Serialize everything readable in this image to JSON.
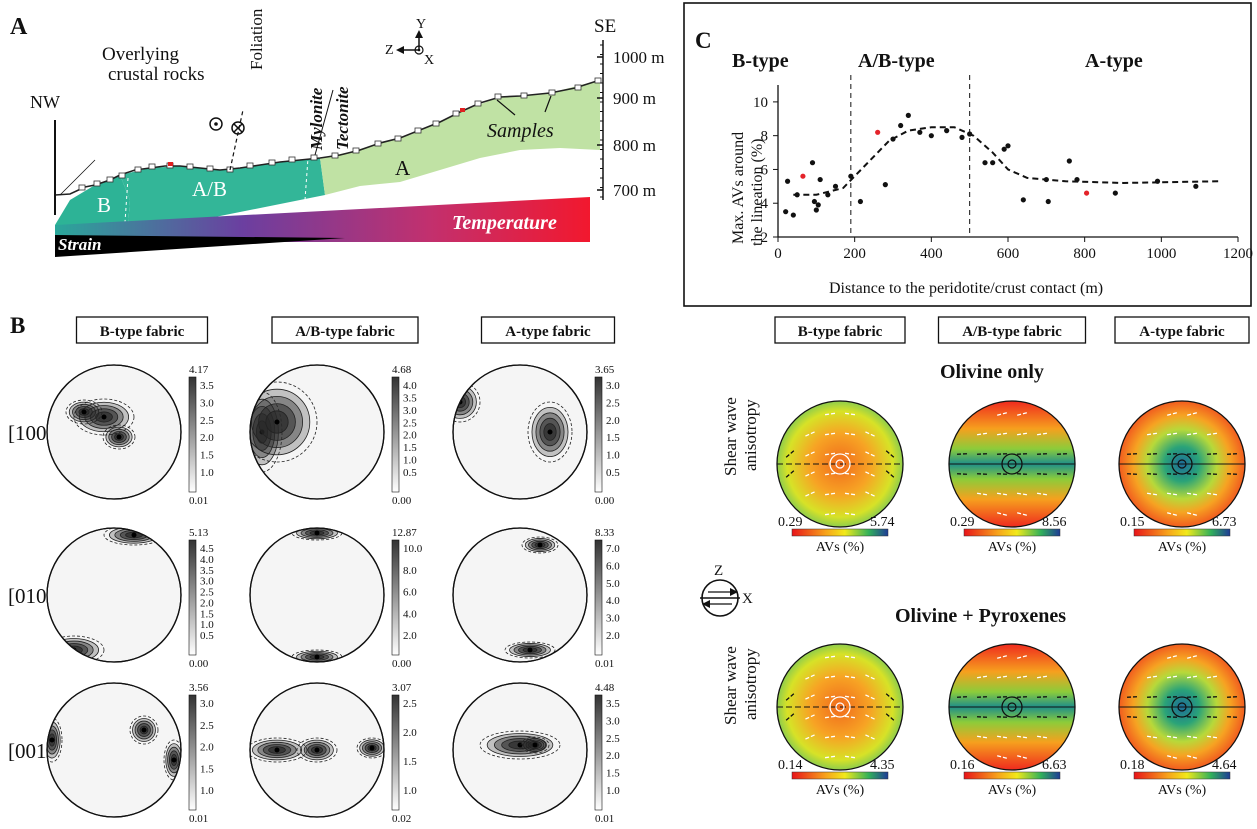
{
  "panel_a": {
    "letter": "A",
    "nw": "NW",
    "se": "SE",
    "overlying": [
      "Overlying",
      "crustal rocks"
    ],
    "foliation": "Foliation",
    "mylonite": "Mylonite",
    "tectonite": "Tectonite",
    "samples": "Samples",
    "zone_b": "B",
    "zone_ab": "A/B",
    "zone_a": "A",
    "strain": "Strain",
    "temperature": "Temperature",
    "axis_y": "Y",
    "axis_z": "Z",
    "axis_x": "X",
    "elev_labels": [
      "1000 m",
      "900 m",
      "800 m",
      "700 m"
    ],
    "colors": {
      "b_zone": "#2fae8f",
      "ab_zone": "#3cb79a",
      "a_zone": "#b9df9c",
      "temp_end": "#f2182e"
    }
  },
  "panel_b": {
    "letter": "B",
    "headers": [
      "B-type fabric",
      "A/B-type fabric",
      "A-type fabric"
    ],
    "rows": [
      "[100]",
      "[010]",
      "[001]"
    ],
    "scales": [
      [
        {
          "max": "4.17",
          "ticks": [
            "3.5",
            "3.0",
            "2.5",
            "2.0",
            "1.5",
            "1.0"
          ],
          "min": "0.01"
        },
        {
          "max": "4.68",
          "ticks": [
            "4.0",
            "3.5",
            "3.0",
            "2.5",
            "2.0",
            "1.5",
            "1.0",
            "0.5"
          ],
          "min": "0.00"
        },
        {
          "max": "3.65",
          "ticks": [
            "3.0",
            "2.5",
            "2.0",
            "1.5",
            "1.0",
            "0.5"
          ],
          "min": "0.00"
        }
      ],
      [
        {
          "max": "5.13",
          "ticks": [
            "4.5",
            "4.0",
            "3.5",
            "3.0",
            "2.5",
            "2.0",
            "1.5",
            "1.0",
            "0.5"
          ],
          "min": "0.00"
        },
        {
          "max": "12.87",
          "ticks": [
            "10.0",
            "8.0",
            "6.0",
            "4.0",
            "2.0"
          ],
          "min": "0.00"
        },
        {
          "max": "8.33",
          "ticks": [
            "7.0",
            "6.0",
            "5.0",
            "4.0",
            "3.0",
            "2.0"
          ],
          "min": "0.01"
        }
      ],
      [
        {
          "max": "3.56",
          "ticks": [
            "3.0",
            "2.5",
            "2.0",
            "1.5",
            "1.0"
          ],
          "min": "0.01"
        },
        {
          "max": "3.07",
          "ticks": [
            "2.5",
            "2.0",
            "1.5",
            "1.0"
          ],
          "min": "0.02"
        },
        {
          "max": "4.48",
          "ticks": [
            "3.5",
            "3.0",
            "2.5",
            "2.0",
            "1.5",
            "1.0"
          ],
          "min": "0.01"
        }
      ]
    ]
  },
  "panel_c": {
    "letter": "C",
    "zones": [
      "B-type",
      "A/B-type",
      "A-type"
    ],
    "chart_data": {
      "type": "scatter",
      "xlabel": "Distance to the peridotite/crust contact (m)",
      "ylabel": [
        "Max. AVs around",
        "the lineation (%)"
      ],
      "xlim": [
        0,
        1200
      ],
      "ylim": [
        2,
        11
      ],
      "xticks": [
        0,
        200,
        400,
        600,
        800,
        1000,
        1200
      ],
      "yticks": [
        2,
        4,
        6,
        8,
        10
      ],
      "boundaries": [
        190,
        500
      ],
      "points_black": [
        [
          20,
          3.5
        ],
        [
          25,
          5.3
        ],
        [
          40,
          3.3
        ],
        [
          50,
          4.5
        ],
        [
          90,
          6.4
        ],
        [
          95,
          4.1
        ],
        [
          100,
          3.6
        ],
        [
          105,
          3.9
        ],
        [
          110,
          5.4
        ],
        [
          130,
          4.5
        ],
        [
          150,
          5.0
        ],
        [
          190,
          5.6
        ],
        [
          215,
          4.1
        ],
        [
          280,
          5.1
        ],
        [
          300,
          7.8
        ],
        [
          320,
          8.6
        ],
        [
          340,
          9.2
        ],
        [
          370,
          8.2
        ],
        [
          400,
          8.0
        ],
        [
          440,
          8.3
        ],
        [
          480,
          7.9
        ],
        [
          500,
          8.1
        ],
        [
          540,
          6.4
        ],
        [
          560,
          6.4
        ],
        [
          590,
          7.2
        ],
        [
          600,
          7.4
        ],
        [
          640,
          4.2
        ],
        [
          700,
          5.4
        ],
        [
          705,
          4.1
        ],
        [
          760,
          6.5
        ],
        [
          780,
          5.4
        ],
        [
          880,
          4.6
        ],
        [
          990,
          5.3
        ],
        [
          1090,
          5.0
        ]
      ],
      "points_red": [
        [
          65,
          5.6
        ],
        [
          260,
          8.2
        ],
        [
          805,
          4.6
        ]
      ],
      "trend": [
        [
          40,
          4.5
        ],
        [
          100,
          4.5
        ],
        [
          170,
          4.9
        ],
        [
          230,
          6.3
        ],
        [
          290,
          7.7
        ],
        [
          340,
          8.3
        ],
        [
          400,
          8.5
        ],
        [
          460,
          8.5
        ],
        [
          510,
          8.0
        ],
        [
          560,
          7.0
        ],
        [
          600,
          6.0
        ],
        [
          650,
          5.5
        ],
        [
          750,
          5.3
        ],
        [
          900,
          5.2
        ],
        [
          1150,
          5.3
        ]
      ]
    }
  },
  "panel_d": {
    "headers": [
      "B-type fabric",
      "A/B-type fabric",
      "A-type fabric"
    ],
    "olivine_title": "Olivine only",
    "pyrox_title": "Olivine + Pyroxenes",
    "row_label": [
      "Shear wave",
      "anisotropy"
    ],
    "avs_label": "AVs (%)",
    "axis_z": "Z",
    "axis_x": "X",
    "olivine_ranges": [
      [
        "0.29",
        "5.74"
      ],
      [
        "0.29",
        "8.56"
      ],
      [
        "0.15",
        "6.73"
      ]
    ],
    "pyrox_ranges": [
      [
        "0.14",
        "4.35"
      ],
      [
        "0.16",
        "6.63"
      ],
      [
        "0.18",
        "4.64"
      ]
    ]
  }
}
